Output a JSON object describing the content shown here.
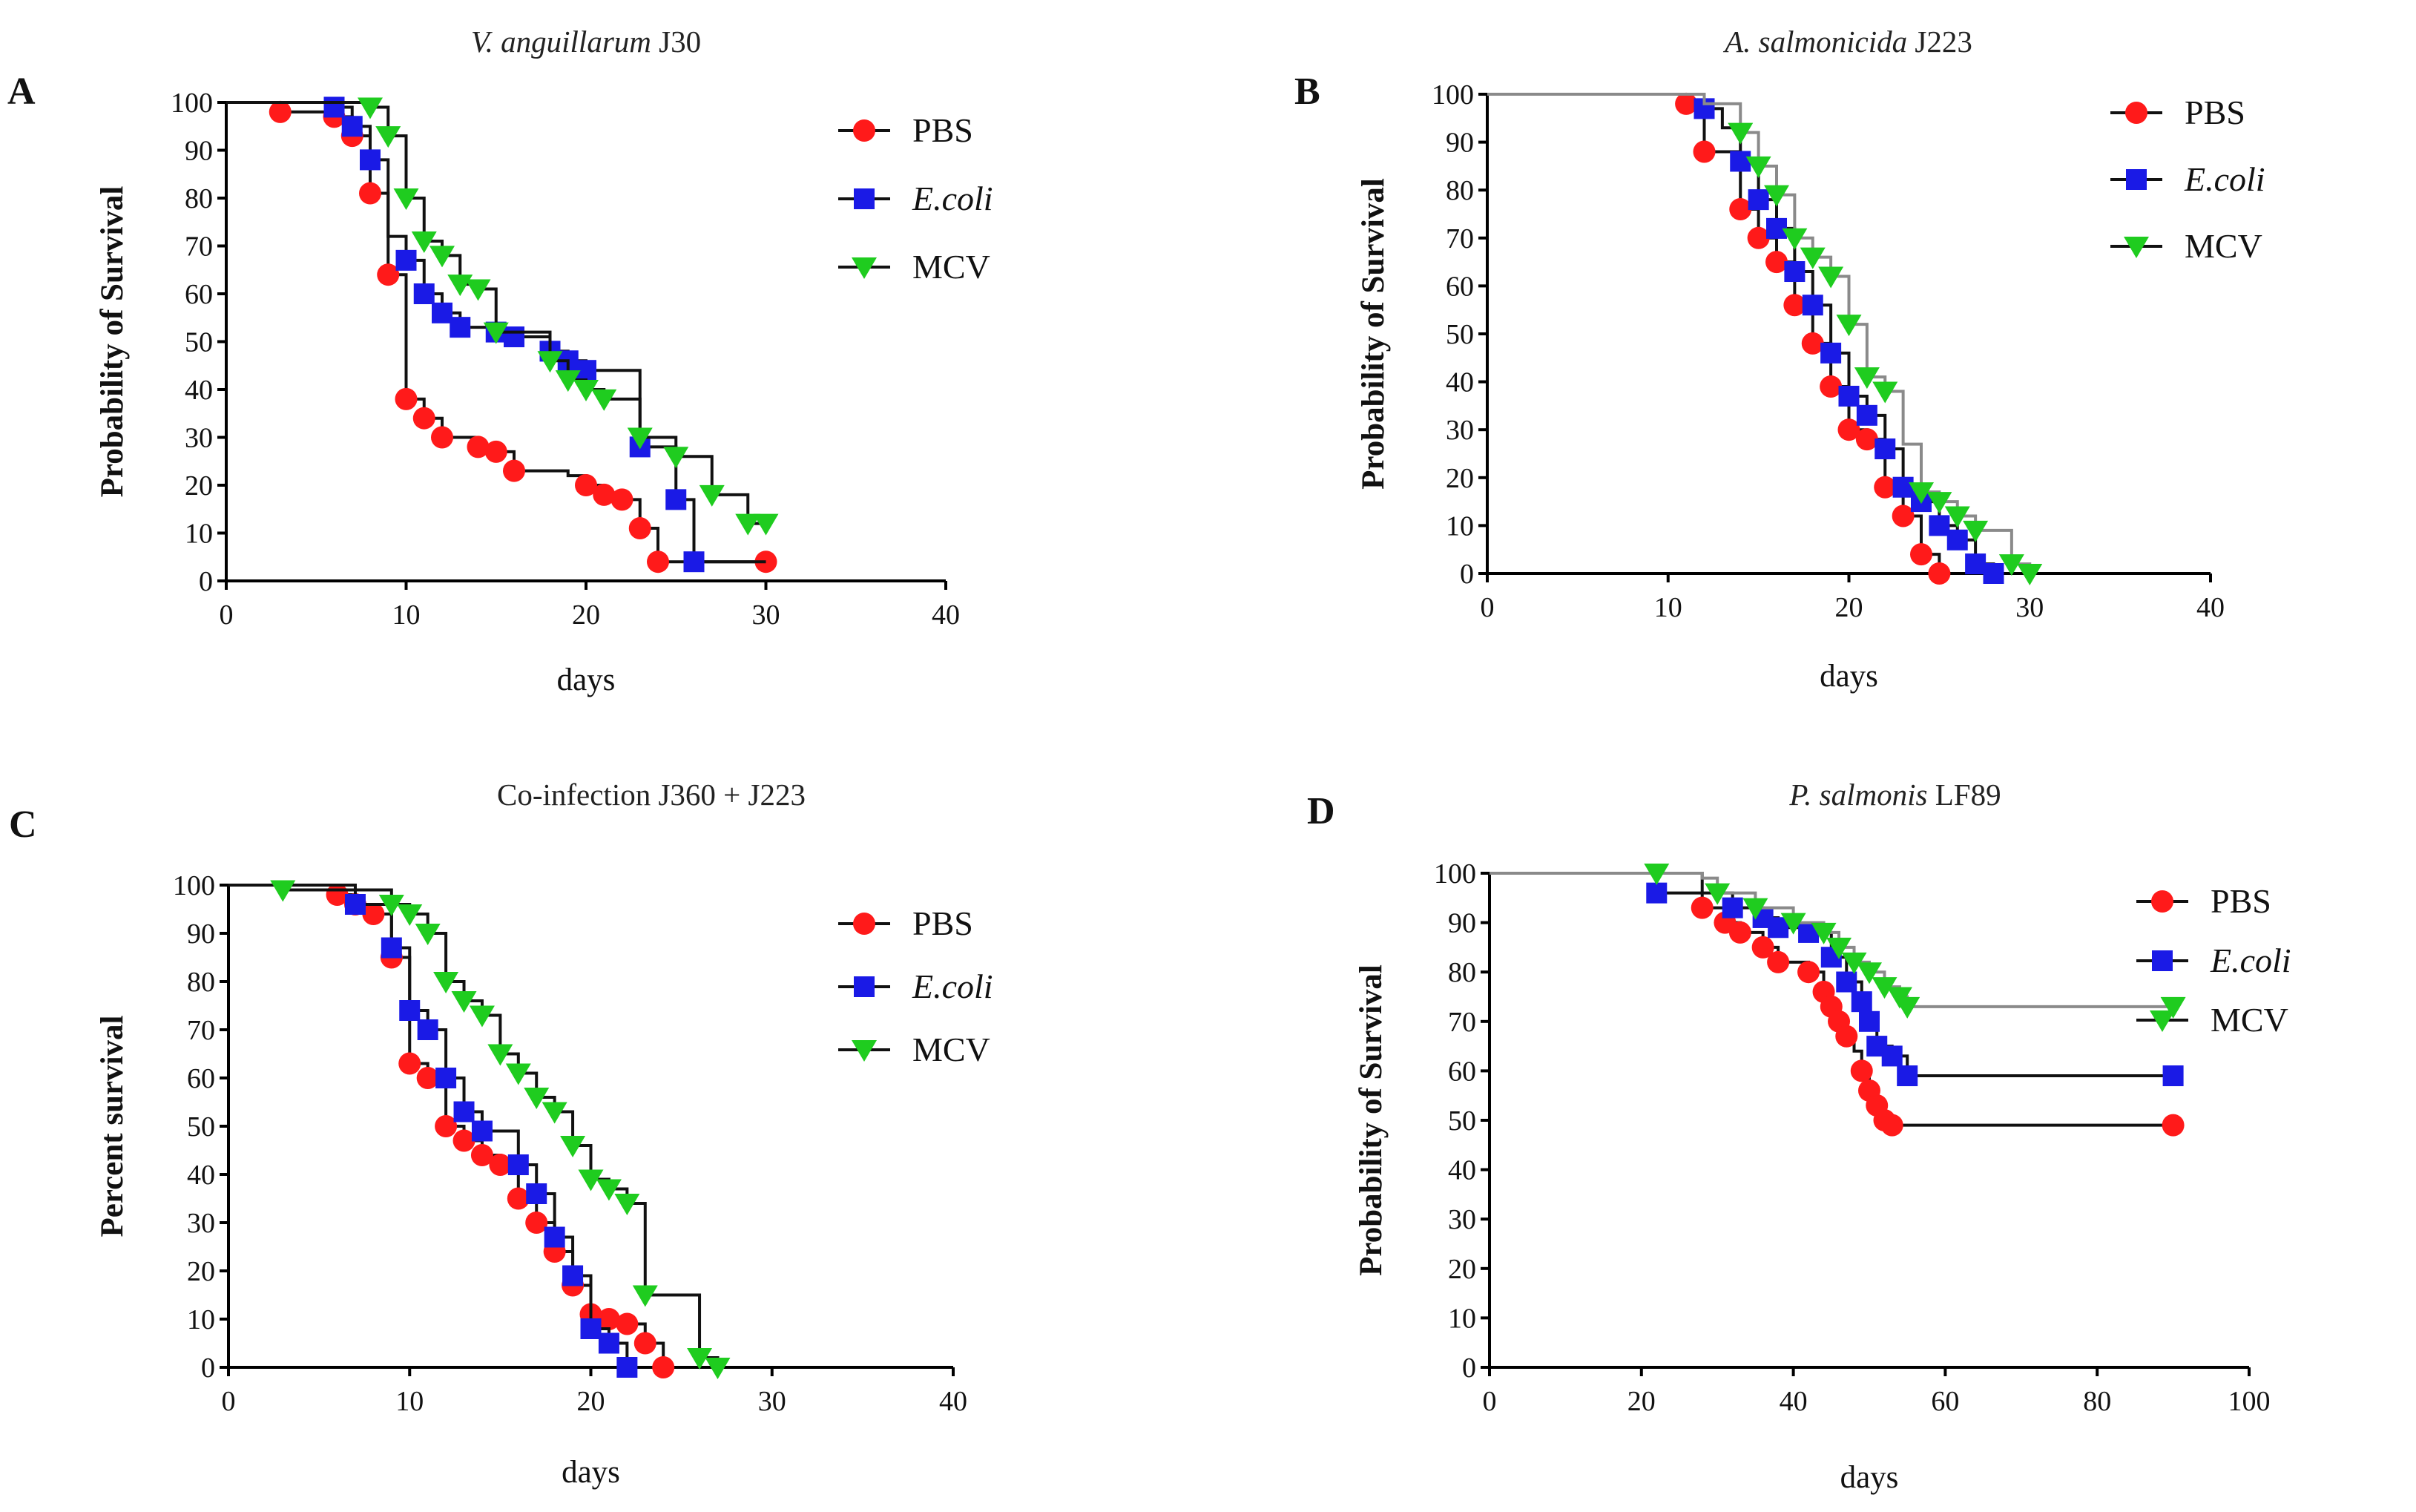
{
  "colors": {
    "PBS": "#ff1a1a",
    "E.coli": "#1a1ae6",
    "MCV": "#1fcc1f",
    "line_dark": "#111111",
    "line_grey": "#8a8a8a"
  },
  "chart_data": [
    {
      "panel": "A",
      "type": "line",
      "subtype": "kaplan-meier",
      "title_parts": [
        {
          "text": "V. anguillarum",
          "italic": true
        },
        {
          "text": " J30",
          "italic": false
        }
      ],
      "xlabel": "days",
      "ylabel": "Probability of Survival",
      "xlim": [
        0,
        40
      ],
      "ylim": [
        0,
        100
      ],
      "xticks": [
        0,
        10,
        20,
        30,
        40
      ],
      "yticks": [
        0,
        10,
        20,
        30,
        40,
        50,
        60,
        70,
        80,
        90,
        100
      ],
      "legend_position": "top-right",
      "legend": [
        {
          "label": "PBS",
          "italic": false
        },
        {
          "label": "E.coli",
          "italic": true
        },
        {
          "label": "MCV",
          "italic": false
        }
      ],
      "series": [
        {
          "name": "PBS",
          "marker": "circle",
          "line": "dark",
          "x": [
            0,
            3,
            6,
            7,
            8,
            9,
            10,
            11,
            12,
            14,
            15,
            16,
            19,
            20,
            21,
            22,
            23,
            24,
            30
          ],
          "y": [
            100,
            98,
            97,
            93,
            81,
            64,
            38,
            34,
            30,
            28,
            27,
            23,
            22,
            20,
            18,
            17,
            11,
            4,
            4
          ],
          "markers_x": [
            3,
            6,
            7,
            8,
            9,
            10,
            11,
            12,
            14,
            15,
            16,
            20,
            21,
            22,
            23,
            24,
            30
          ]
        },
        {
          "name": "E.coli",
          "marker": "square",
          "line": "dark",
          "x": [
            0,
            6,
            7,
            8,
            9,
            10,
            11,
            12,
            13,
            15,
            16,
            18,
            19,
            20,
            23,
            25,
            26,
            30
          ],
          "y": [
            100,
            99,
            95,
            88,
            72,
            67,
            60,
            56,
            53,
            52,
            51,
            48,
            46,
            44,
            28,
            17,
            4,
            4
          ],
          "markers_x": [
            6,
            7,
            8,
            10,
            11,
            12,
            13,
            15,
            16,
            18,
            19,
            20,
            23,
            25,
            26
          ]
        },
        {
          "name": "MCV",
          "marker": "triangle-down",
          "line": "dark",
          "x": [
            0,
            8,
            9,
            10,
            11,
            12,
            13,
            14,
            15,
            18,
            19,
            20,
            21,
            23,
            25,
            27,
            29,
            30
          ],
          "y": [
            100,
            99,
            93,
            80,
            71,
            68,
            62,
            61,
            52,
            46,
            42,
            40,
            38,
            30,
            26,
            18,
            12,
            12
          ],
          "markers_x": [
            8,
            9,
            10,
            11,
            12,
            13,
            14,
            15,
            18,
            19,
            20,
            21,
            23,
            25,
            27,
            29,
            30
          ]
        }
      ]
    },
    {
      "panel": "B",
      "type": "line",
      "subtype": "kaplan-meier",
      "title_parts": [
        {
          "text": "A. salmonicida",
          "italic": true
        },
        {
          "text": " J223",
          "italic": false
        }
      ],
      "xlabel": "days",
      "ylabel": "Probability of Survival",
      "xlim": [
        0,
        40
      ],
      "ylim": [
        0,
        100
      ],
      "xticks": [
        0,
        10,
        20,
        30,
        40
      ],
      "yticks": [
        0,
        10,
        20,
        30,
        40,
        50,
        60,
        70,
        80,
        90,
        100
      ],
      "legend_position": "top-right",
      "legend": [
        {
          "label": "PBS",
          "italic": false
        },
        {
          "label": "E.coli",
          "italic": true
        },
        {
          "label": "MCV",
          "italic": false
        }
      ],
      "series": [
        {
          "name": "PBS",
          "marker": "circle",
          "line": "dark",
          "x": [
            0,
            11,
            12,
            14,
            15,
            16,
            17,
            18,
            19,
            20,
            21,
            22,
            23,
            24,
            25
          ],
          "y": [
            100,
            98,
            88,
            76,
            70,
            65,
            56,
            48,
            39,
            30,
            28,
            18,
            12,
            4,
            0
          ],
          "markers_x": [
            11,
            12,
            14,
            15,
            16,
            17,
            18,
            19,
            20,
            21,
            22,
            23,
            24,
            25
          ]
        },
        {
          "name": "E.coli",
          "marker": "square",
          "line": "dark",
          "x": [
            0,
            12,
            13,
            14,
            15,
            16,
            17,
            18,
            19,
            20,
            21,
            22,
            23,
            24,
            25,
            26,
            27,
            28
          ],
          "y": [
            100,
            97,
            93,
            86,
            78,
            72,
            63,
            56,
            46,
            37,
            33,
            26,
            18,
            15,
            10,
            7,
            2,
            0
          ],
          "markers_x": [
            12,
            14,
            15,
            16,
            17,
            18,
            19,
            20,
            21,
            22,
            23,
            24,
            25,
            26,
            27,
            28
          ]
        },
        {
          "name": "MCV",
          "marker": "triangle-down",
          "line": "grey",
          "x": [
            0,
            12,
            14,
            15,
            16,
            17,
            18,
            19,
            20,
            21,
            22,
            23,
            24,
            25,
            26,
            27,
            29,
            30
          ],
          "y": [
            100,
            98,
            92,
            85,
            79,
            70,
            66,
            62,
            52,
            41,
            38,
            27,
            17,
            15,
            12,
            9,
            2,
            0
          ],
          "markers_x": [
            14,
            15,
            16,
            17,
            18,
            19,
            20,
            21,
            22,
            24,
            25,
            26,
            27,
            29,
            30
          ]
        }
      ]
    },
    {
      "panel": "C",
      "type": "line",
      "subtype": "kaplan-meier",
      "title_parts": [
        {
          "text": "Co-infection J360 + J223",
          "italic": false
        }
      ],
      "xlabel": "days",
      "ylabel": "Percent survival",
      "xlim": [
        0,
        40
      ],
      "ylim": [
        0,
        100
      ],
      "xticks": [
        0,
        10,
        20,
        30,
        40
      ],
      "yticks": [
        0,
        10,
        20,
        30,
        40,
        50,
        60,
        70,
        80,
        90,
        100
      ],
      "legend_position": "top-right",
      "legend": [
        {
          "label": "PBS",
          "italic": false
        },
        {
          "label": "E.coli",
          "italic": true
        },
        {
          "label": "MCV",
          "italic": false
        }
      ],
      "series": [
        {
          "name": "PBS",
          "marker": "circle",
          "line": "dark",
          "x": [
            0,
            6,
            7,
            8,
            9,
            10,
            11,
            12,
            13,
            14,
            15,
            16,
            17,
            18,
            19,
            20,
            21,
            22,
            23,
            24
          ],
          "y": [
            100,
            98,
            96,
            94,
            85,
            63,
            60,
            50,
            47,
            44,
            42,
            35,
            30,
            24,
            17,
            11,
            10,
            9,
            5,
            0
          ],
          "markers_x": [
            6,
            7,
            8,
            9,
            10,
            11,
            12,
            13,
            14,
            15,
            16,
            17,
            18,
            19,
            20,
            21,
            22,
            23,
            24
          ]
        },
        {
          "name": "E.coli",
          "marker": "square",
          "line": "dark",
          "x": [
            0,
            7,
            9,
            10,
            11,
            12,
            13,
            14,
            16,
            17,
            18,
            19,
            20,
            21,
            22
          ],
          "y": [
            100,
            96,
            87,
            74,
            70,
            60,
            53,
            49,
            42,
            36,
            27,
            19,
            8,
            5,
            0
          ],
          "markers_x": [
            7,
            9,
            10,
            11,
            12,
            13,
            14,
            16,
            17,
            18,
            19,
            20,
            21,
            22
          ]
        },
        {
          "name": "MCV",
          "marker": "triangle-down",
          "line": "dark",
          "x": [
            0,
            3,
            9,
            10,
            11,
            12,
            13,
            14,
            15,
            16,
            17,
            18,
            19,
            20,
            21,
            22,
            23,
            26,
            27
          ],
          "y": [
            100,
            99,
            96,
            94,
            90,
            80,
            76,
            73,
            65,
            61,
            56,
            53,
            46,
            39,
            37,
            34,
            15,
            2,
            0
          ],
          "markers_x": [
            3,
            9,
            10,
            11,
            12,
            13,
            14,
            15,
            16,
            17,
            18,
            19,
            20,
            21,
            22,
            23,
            26,
            27
          ]
        }
      ]
    },
    {
      "panel": "D",
      "type": "line",
      "subtype": "kaplan-meier",
      "title_parts": [
        {
          "text": "P. salmonis",
          "italic": true
        },
        {
          "text": " LF89",
          "italic": false
        }
      ],
      "xlabel": "days",
      "ylabel": "Probability of Survival",
      "xlim": [
        0,
        100
      ],
      "ylim": [
        0,
        100
      ],
      "xticks": [
        0,
        20,
        40,
        60,
        80,
        100
      ],
      "yticks": [
        0,
        10,
        20,
        30,
        40,
        50,
        60,
        70,
        80,
        90,
        100
      ],
      "legend_position": "top-right",
      "legend": [
        {
          "label": "PBS",
          "italic": false
        },
        {
          "label": "E.coli",
          "italic": true
        },
        {
          "label": "MCV",
          "italic": false
        }
      ],
      "series": [
        {
          "name": "PBS",
          "marker": "circle",
          "line": "dark",
          "x": [
            0,
            28,
            31,
            33,
            36,
            38,
            42,
            44,
            45,
            46,
            47,
            48,
            49,
            50,
            51,
            52,
            53,
            90
          ],
          "y": [
            100,
            93,
            90,
            88,
            85,
            82,
            80,
            76,
            73,
            70,
            67,
            64,
            60,
            56,
            53,
            50,
            49,
            49
          ],
          "markers_x": [
            28,
            31,
            33,
            36,
            38,
            42,
            44,
            45,
            46,
            47,
            49,
            50,
            51,
            52,
            53,
            90
          ]
        },
        {
          "name": "E.coli",
          "marker": "square",
          "line": "dark",
          "x": [
            0,
            22,
            32,
            36,
            38,
            42,
            45,
            47,
            49,
            50,
            51,
            53,
            55,
            90
          ],
          "y": [
            100,
            96,
            93,
            91,
            89,
            88,
            83,
            78,
            74,
            70,
            65,
            63,
            59,
            59
          ],
          "markers_x": [
            22,
            32,
            36,
            38,
            42,
            45,
            47,
            49,
            50,
            51,
            53,
            55,
            90
          ]
        },
        {
          "name": "MCV",
          "marker": "triangle-down",
          "line": "grey",
          "x": [
            0,
            28,
            30,
            35,
            40,
            44,
            46,
            48,
            50,
            52,
            54,
            55,
            90
          ],
          "y": [
            100,
            99,
            96,
            93,
            90,
            88,
            85,
            82,
            80,
            77,
            75,
            73,
            73
          ],
          "markers_x": [
            22,
            30,
            35,
            40,
            44,
            46,
            48,
            50,
            52,
            54,
            55,
            90
          ]
        }
      ]
    }
  ]
}
